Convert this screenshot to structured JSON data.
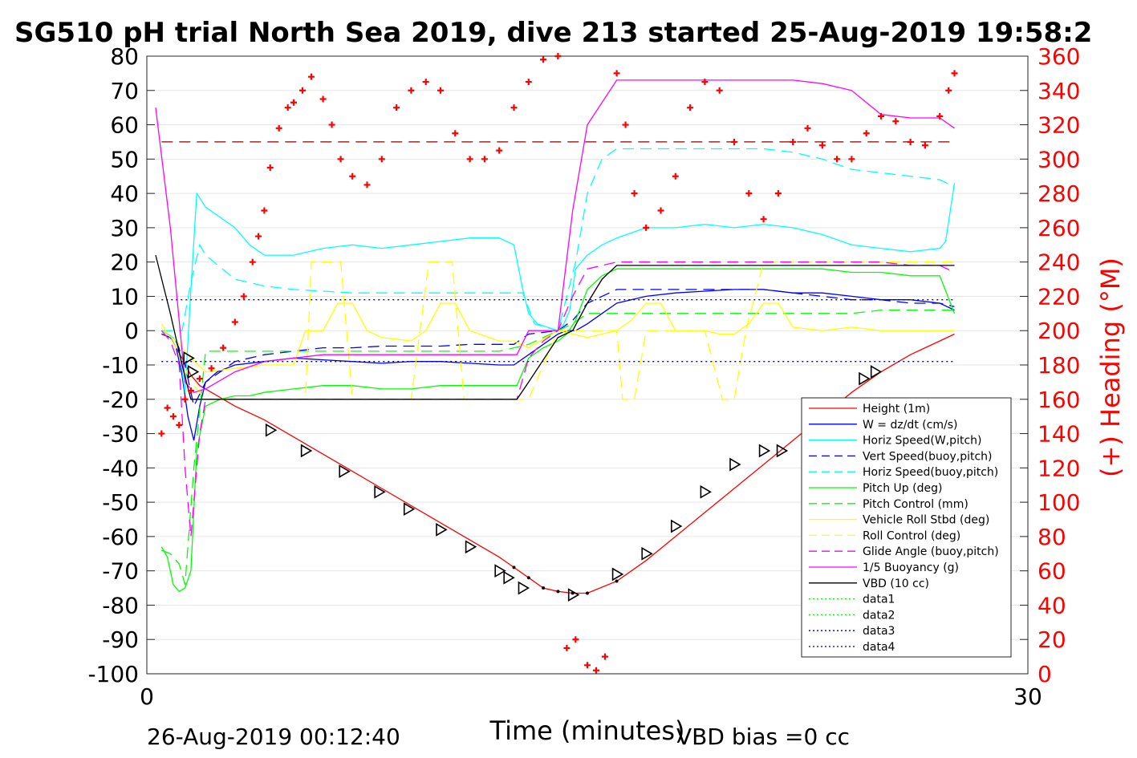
{
  "chart_data": {
    "type": "line",
    "title": "SG510 pH trial North Sea 2019, dive 213 started 25-Aug-2019 19:58:2",
    "xlabel": "Time (minutes)",
    "ylabel": "",
    "y2label": "(+) Heading (°M)",
    "footer_left": "26-Aug-2019 00:12:40",
    "footer_right": "VBD bias =0 cc",
    "xlim": [
      0,
      30
    ],
    "ylim": [
      -100,
      80
    ],
    "y2lim": [
      0,
      360
    ],
    "x_ticks": [
      "0",
      "30"
    ],
    "y_ticks": [
      "-100",
      "-90",
      "-80",
      "-70",
      "-60",
      "-50",
      "-40",
      "-30",
      "-20",
      "-10",
      "0",
      "10",
      "20",
      "30",
      "40",
      "50",
      "60",
      "70",
      "80"
    ],
    "y2_ticks": [
      "0",
      "20",
      "40",
      "60",
      "80",
      "100",
      "120",
      "140",
      "160",
      "180",
      "200",
      "220",
      "240",
      "260",
      "280",
      "300",
      "320",
      "340",
      "360"
    ],
    "grid": true,
    "legend_position": "bottom-right",
    "colors": {
      "height": "#ff0000",
      "w": "#0000ff",
      "hspeed": "#00ffff",
      "vbuoy": "#0000ff",
      "hbuoy": "#00ffff",
      "pitch": "#00ff00",
      "pitchctl": "#00ff00",
      "roll": "#ffff00",
      "rollctl": "#ffff00",
      "glide": "#ff00ff",
      "buoy": "#ff00ff",
      "vbd": "#000000",
      "heading": "#ff0000",
      "refline": "#8b0000"
    },
    "series": [
      {
        "id": "height",
        "name": "Height (1m)",
        "style": "solid",
        "color": "#ff0000",
        "x": [
          0.8,
          1.2,
          1.5,
          1.8,
          2.2,
          3,
          4,
          5,
          6,
          7,
          8,
          9,
          10,
          11,
          12,
          12.5,
          13,
          13.5,
          14,
          14.5,
          15,
          16,
          17,
          18,
          19,
          20,
          21,
          22,
          23,
          24,
          25,
          26,
          27,
          27.5
        ],
        "y": [
          -2,
          -8,
          -13,
          -16,
          -18,
          -22,
          -26,
          -31,
          -36,
          -41,
          -46,
          -51,
          -56,
          -61,
          -66,
          -69,
          -72,
          -75,
          -76,
          -76.5,
          -76.5,
          -73,
          -67,
          -60,
          -53,
          -46,
          -39,
          -32,
          -25,
          -18,
          -12,
          -7,
          -3,
          -1
        ]
      },
      {
        "id": "w",
        "name": "W = dz/dt (cm/s)",
        "style": "solid",
        "color": "#0000ff",
        "x": [
          0.5,
          0.8,
          1,
          1.2,
          1.4,
          1.6,
          1.8,
          2,
          2.4,
          3,
          4,
          5,
          6,
          7,
          8,
          9,
          10,
          11,
          12,
          12.5,
          13,
          13.5,
          14,
          14.3,
          14.6,
          15,
          15.5,
          16,
          17,
          18,
          19,
          20,
          21,
          22,
          23,
          24,
          25,
          26,
          27,
          27.5
        ],
        "y": [
          -1,
          -2,
          -5,
          -13,
          -25,
          -32,
          -22,
          -15,
          -12,
          -10,
          -9,
          -8,
          -8.5,
          -9,
          -9.5,
          -9,
          -9,
          -9.5,
          -10,
          -10,
          -7,
          -4,
          -1,
          0,
          0,
          2,
          5,
          8,
          10,
          11,
          11.5,
          12,
          12,
          11,
          11,
          10,
          9,
          9,
          8,
          6
        ]
      },
      {
        "id": "hspeed",
        "name": "Horiz Speed(W,pitch)",
        "style": "solid",
        "color": "#00ffff",
        "x": [
          0.5,
          0.9,
          1.1,
          1.3,
          1.5,
          1.7,
          2,
          3,
          3.5,
          4,
          5,
          6,
          7,
          8,
          9,
          10,
          11,
          12,
          12.5,
          12.8,
          13,
          13.3,
          14,
          14.2,
          14.4,
          14.6,
          15,
          15.5,
          16,
          17,
          18,
          19,
          20,
          21,
          22,
          23,
          24,
          25,
          26,
          27,
          27.2,
          27.5
        ],
        "y": [
          0,
          -2,
          -5,
          -18,
          12,
          40,
          36,
          30,
          25,
          22,
          22,
          24,
          25,
          24,
          25,
          26,
          27,
          27,
          25,
          12,
          5,
          2,
          0,
          2,
          6,
          18,
          22,
          25,
          27,
          30,
          30,
          31,
          30,
          31,
          30,
          28,
          25,
          24,
          23,
          24,
          26,
          43
        ]
      },
      {
        "id": "vbuoy",
        "name": "Vert Speed(buoy,pitch)",
        "style": "dash",
        "color": "#0000ff",
        "x": [
          0.5,
          1,
          1.3,
          1.6,
          2,
          3,
          4,
          5,
          6,
          7,
          8,
          9,
          10,
          11,
          12,
          12.5,
          13,
          14,
          14.5,
          15,
          16,
          17,
          18,
          19,
          20,
          21,
          22,
          23,
          24,
          25,
          26,
          27,
          27.5
        ],
        "y": [
          0,
          -3,
          -10,
          -22,
          -15,
          -9,
          -7,
          -6,
          -5,
          -5,
          -4.5,
          -4.5,
          -4.5,
          -4,
          -4,
          -4,
          -1,
          0,
          3,
          8,
          12,
          12,
          12,
          12,
          12,
          12,
          11,
          10,
          9,
          9,
          8,
          8,
          7
        ]
      },
      {
        "id": "hbuoy",
        "name": "Horiz Speed(buoy,pitch)",
        "style": "dash",
        "color": "#00ffff",
        "x": [
          0.5,
          1.2,
          1.5,
          1.8,
          2,
          3,
          4,
          5,
          6,
          7,
          8,
          9,
          10,
          11,
          12,
          12.8,
          13.2,
          14,
          14.6,
          15,
          15.5,
          16,
          17,
          18,
          19,
          20,
          21,
          22,
          23,
          24,
          25,
          26,
          27,
          27.5
        ],
        "y": [
          0,
          0,
          14,
          25,
          22,
          15,
          13,
          12,
          11.5,
          11,
          11,
          11,
          11,
          11,
          11,
          11,
          2,
          0,
          20,
          40,
          50,
          53,
          53,
          53,
          53,
          53,
          53,
          52,
          50,
          47,
          46,
          45,
          44,
          42
        ]
      },
      {
        "id": "pitch",
        "name": "Pitch Up (deg)",
        "style": "solid",
        "color": "#00ff00",
        "x": [
          0.5,
          0.7,
          0.9,
          1.1,
          1.3,
          1.5,
          1.7,
          2,
          2.5,
          3,
          3.5,
          4,
          5,
          6,
          7,
          8,
          9,
          10,
          11,
          12,
          12.6,
          13,
          13.5,
          14,
          14.3,
          14.6,
          15,
          15.5,
          16,
          17,
          18,
          19,
          20,
          21,
          22,
          23,
          24,
          25,
          26,
          27,
          27.5
        ],
        "y": [
          -63,
          -66,
          -74,
          -76,
          -75,
          -70,
          -35,
          -22,
          -20,
          -19,
          -19,
          -18,
          -17,
          -16,
          -16,
          -17,
          -17,
          -16,
          -16,
          -16,
          -16,
          -8,
          -5,
          -3,
          -1,
          3,
          12,
          16,
          18,
          18,
          18,
          18,
          18,
          18,
          18,
          18,
          17,
          17,
          16,
          16,
          5
        ]
      },
      {
        "id": "pitchctl",
        "name": "Pitch Control (mm)",
        "style": "dash",
        "color": "#00ff00",
        "x": [
          0.5,
          0.8,
          1.1,
          1.3,
          1.6,
          2,
          3,
          4,
          5,
          6,
          7,
          8,
          9,
          10,
          11,
          12,
          13,
          14,
          14.5,
          15,
          16,
          17,
          18,
          19,
          20,
          21,
          22,
          23,
          24,
          25,
          26,
          27,
          27.5
        ],
        "y": [
          -64,
          -65,
          -68,
          -74,
          -40,
          -6,
          -6,
          -6,
          -6,
          -6,
          -6,
          -6,
          -6,
          -6,
          -6,
          -6,
          -4,
          0,
          2,
          5,
          5,
          5,
          5,
          5,
          5,
          5,
          5,
          5,
          5,
          6,
          6,
          6,
          6
        ]
      },
      {
        "id": "roll",
        "name": "Vehicle Roll Stbd (deg)",
        "style": "solid",
        "color": "#ffff00",
        "x": [
          0.5,
          1,
          1.5,
          2,
          3,
          4,
          5,
          5.4,
          6,
          6.5,
          7,
          7.5,
          8,
          9,
          9.5,
          10,
          10.5,
          11,
          12,
          12.5,
          13,
          14,
          15,
          16,
          16.5,
          17,
          17.5,
          18,
          19,
          19.5,
          20,
          20.5,
          21,
          21.5,
          22,
          23,
          24,
          25,
          26,
          27,
          27.5
        ],
        "y": [
          0,
          -3,
          -8,
          -12,
          -11,
          -10,
          -10,
          0,
          0,
          8,
          8,
          0,
          -2,
          -3,
          0,
          8,
          8,
          0,
          -3,
          -3,
          -5,
          0,
          -2,
          0,
          3,
          8,
          8,
          0,
          0,
          -1,
          -1,
          2,
          8,
          8,
          1,
          0,
          1,
          0,
          0,
          0,
          0
        ]
      },
      {
        "id": "rollctl",
        "name": "Roll Control (deg)",
        "style": "dash",
        "color": "#ffff00",
        "x": [
          0.5,
          1,
          1.5,
          2,
          3,
          4,
          5,
          5.4,
          5.6,
          6,
          6.3,
          6.6,
          7,
          8,
          8.5,
          9,
          9.6,
          10,
          10.4,
          10.8,
          11,
          12,
          12.5,
          13,
          14,
          15,
          16,
          16.2,
          16.6,
          17,
          18,
          19,
          19.6,
          20,
          20.4,
          21,
          22,
          23,
          24,
          25,
          26,
          27,
          27.5
        ],
        "y": [
          2,
          -5,
          -15,
          -20,
          -20,
          -20,
          -20,
          -20,
          20,
          20,
          20,
          20,
          -20,
          -20,
          -20,
          -20,
          20,
          20,
          20,
          -20,
          -20,
          -20,
          -20,
          -20,
          0,
          0,
          0,
          -20,
          -20,
          0,
          0,
          0,
          -20,
          -20,
          0,
          20,
          20,
          20,
          20,
          20,
          20,
          20,
          20
        ]
      },
      {
        "id": "glide",
        "name": "Glide Angle (buoy,pitch)",
        "style": "dash",
        "color": "#ff00ff",
        "x": [
          0.5,
          0.8,
          1.1,
          1.3,
          1.5,
          1.8,
          2,
          3,
          4,
          5,
          6,
          7,
          8,
          9,
          10,
          11,
          12,
          12.6,
          13,
          13.5,
          14,
          14.5,
          15,
          16,
          17,
          18,
          19,
          20,
          21,
          22,
          23,
          24,
          25,
          26,
          27,
          27.5
        ],
        "y": [
          0,
          -3,
          -10,
          -40,
          -60,
          -30,
          -20,
          -20,
          -20,
          -20,
          -20,
          -20,
          -20,
          -20,
          -20,
          -20,
          -20,
          -20,
          -8,
          -3,
          0,
          10,
          18,
          20,
          20,
          20,
          20,
          20,
          20,
          20,
          20,
          20,
          20,
          19,
          19,
          17
        ]
      },
      {
        "id": "buoy",
        "name": "1/5 Buoyancy (g)",
        "style": "solid",
        "color": "#ff00ff",
        "x": [
          0.3,
          0.8,
          1.3,
          1.6,
          2,
          3,
          4,
          5,
          6,
          7,
          8,
          9,
          10,
          11,
          12,
          12.6,
          13,
          14,
          14.5,
          15,
          16,
          17,
          18,
          19,
          20,
          21,
          22,
          23,
          24,
          25,
          26,
          27,
          27.5
        ],
        "y": [
          65,
          30,
          -15,
          -18,
          -17,
          -12,
          -9,
          -8,
          -7,
          -7,
          -7,
          -7,
          -7,
          -7,
          -7,
          -7,
          0,
          0,
          35,
          60,
          73,
          73,
          73,
          73,
          73,
          73,
          73,
          72,
          70,
          63,
          62,
          62,
          59
        ]
      },
      {
        "id": "vbd",
        "name": "VBD (10 cc)",
        "style": "solid",
        "color": "#000000",
        "x": [
          0.3,
          0.8,
          1.2,
          1.5,
          1.7,
          2,
          3,
          4,
          5,
          6,
          7,
          8,
          9,
          10,
          11,
          12,
          12.6,
          13,
          14,
          14.5,
          15,
          15.5,
          16,
          17,
          18,
          19,
          20,
          21,
          22,
          23,
          24,
          25,
          26,
          27,
          27.5
        ],
        "y": [
          22,
          5,
          -10,
          -20,
          -20,
          -20,
          -20,
          -20,
          -20,
          -20,
          -20,
          -20,
          -20,
          -20,
          -20,
          -20,
          -20,
          -15,
          -2,
          0,
          8,
          15,
          19,
          19,
          19,
          19,
          19,
          19,
          19,
          19,
          19,
          19,
          19,
          19,
          19
        ]
      },
      {
        "id": "data1",
        "name": "data1",
        "style": "dot",
        "color": "#00ff00",
        "x": [],
        "y": []
      },
      {
        "id": "data2",
        "name": "data2",
        "style": "dot",
        "color": "#00ff00",
        "x": [],
        "y": []
      },
      {
        "id": "data3",
        "name": "data3",
        "style": "dot",
        "color": "#00008b",
        "x": [
          0.5,
          27.5
        ],
        "y": [
          9,
          9
        ]
      },
      {
        "id": "data4",
        "name": "data4",
        "style": "dot",
        "color": "#00008b",
        "x": [
          0.5,
          27.5
        ],
        "y": [
          -9,
          -9
        ]
      }
    ],
    "reference_lines": [
      {
        "style": "dash",
        "color": "#8b0000",
        "x": [
          0.5,
          27.5
        ],
        "y": [
          55,
          55
        ]
      }
    ],
    "heading": {
      "axis": "right",
      "marker": "+",
      "x": [
        0.5,
        0.7,
        0.9,
        1.1,
        1.3,
        1.5,
        1.8,
        2.2,
        2.6,
        3,
        3.3,
        3.6,
        3.8,
        4,
        4.2,
        4.5,
        4.8,
        5,
        5.3,
        5.6,
        6,
        6.3,
        6.6,
        7,
        7.5,
        8,
        8.5,
        9,
        9.5,
        10,
        10.5,
        11,
        11.5,
        12,
        12.5,
        13,
        13.5,
        14,
        14.3,
        14.6,
        15,
        15.3,
        15.6,
        16,
        16.3,
        16.6,
        17,
        17.5,
        18,
        18.5,
        19,
        19.5,
        20,
        20.5,
        21,
        21.5,
        22,
        22.5,
        23,
        23.5,
        24,
        24.5,
        25,
        25.5,
        26,
        26.5,
        27,
        27.3,
        27.5
      ],
      "y": [
        140,
        155,
        150,
        145,
        160,
        165,
        172,
        178,
        190,
        205,
        220,
        240,
        255,
        270,
        295,
        318,
        330,
        333,
        340,
        348,
        335,
        320,
        300,
        290,
        285,
        300,
        330,
        340,
        345,
        340,
        315,
        300,
        300,
        305,
        330,
        345,
        358,
        360,
        15,
        20,
        5,
        2,
        10,
        350,
        320,
        280,
        260,
        270,
        290,
        330,
        345,
        340,
        310,
        280,
        265,
        280,
        310,
        318,
        308,
        300,
        300,
        315,
        325,
        322,
        310,
        308,
        325,
        340,
        350
      ]
    },
    "markers": {
      "symbol": "triangle",
      "x": [
        1.4,
        1.55,
        4.2,
        5.4,
        6.7,
        7.9,
        8.9,
        10,
        11,
        12,
        12.3,
        12.8,
        14.5,
        16,
        17,
        18,
        19,
        20,
        21,
        21.6,
        24.4,
        24.8
      ],
      "y": [
        -8,
        -12,
        -29,
        -35,
        -41,
        -47,
        -52,
        -58,
        -63,
        -70,
        -72,
        -75,
        -77,
        -71,
        -65,
        -57,
        -47,
        -39,
        -35,
        -35,
        -14,
        -12
      ]
    }
  }
}
